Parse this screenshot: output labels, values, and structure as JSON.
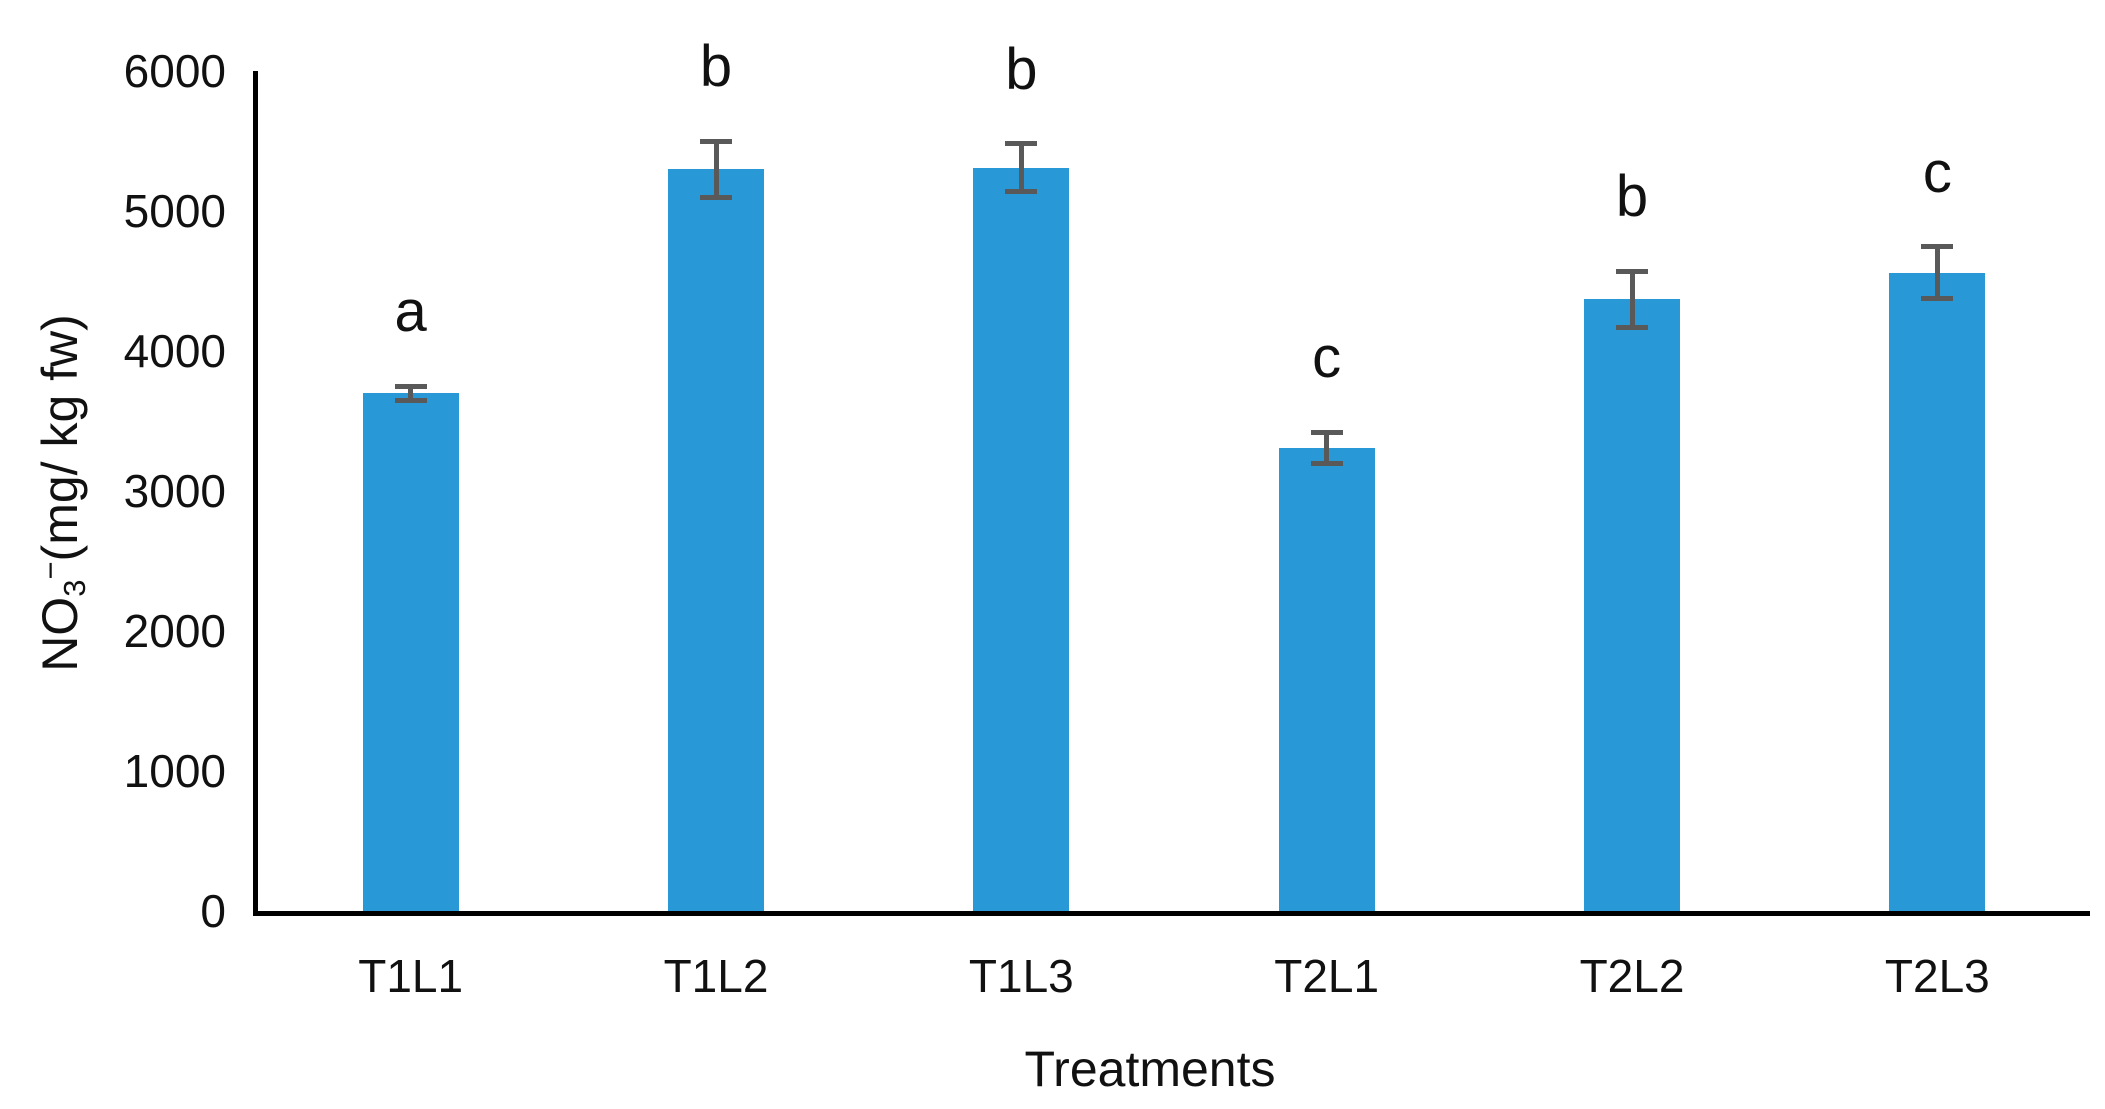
{
  "chart_data": {
    "type": "bar",
    "title": "",
    "categories": [
      "T1L1",
      "T1L2",
      "T1L3",
      "T2L1",
      "T2L2",
      "T2L3"
    ],
    "values": [
      3700,
      5300,
      5310,
      3310,
      4370,
      4560
    ],
    "error_bars": [
      50,
      200,
      170,
      110,
      200,
      185
    ],
    "sig_letters": [
      "a",
      "b",
      "b",
      "c",
      "b",
      "c"
    ],
    "xlabel": "Treatments",
    "ylabel": "NO3- (mg/ kg fw)",
    "ylabel_parts": {
      "prefix": "NO",
      "sub": "3",
      "sup": "−",
      "suffix": "(mg/ kg fw)"
    },
    "ylim": [
      0,
      6000
    ],
    "yticks": [
      0,
      1000,
      2000,
      3000,
      4000,
      5000,
      6000
    ],
    "legend": "none",
    "grid": "off",
    "bar_color": "#2899D6",
    "error_bar_color": "#595959",
    "axis_color": "#000000",
    "text_color": "#111111"
  }
}
